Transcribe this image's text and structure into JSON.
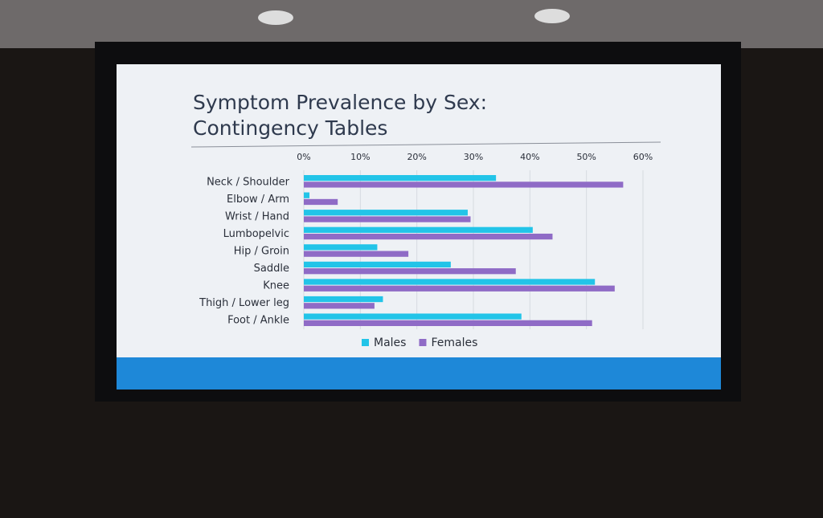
{
  "chart_data": {
    "type": "barh",
    "title": "Symptom Prevalence by Sex: Contingency Tables",
    "categories": [
      "Neck / Shoulder",
      "Elbow / Arm",
      "Wrist / Hand",
      "Lumbopelvic",
      "Hip / Groin",
      "Saddle",
      "Knee",
      "Thigh / Lower leg",
      "Foot / Ankle"
    ],
    "series": [
      {
        "name": "Males",
        "color": "#22c4e8",
        "values": [
          34,
          1,
          29,
          40.5,
          13,
          26,
          51.5,
          14,
          38.5
        ]
      },
      {
        "name": "Females",
        "color": "#8f6bc6",
        "values": [
          56.5,
          6,
          29.5,
          44,
          18.5,
          37.5,
          55,
          12.5,
          51
        ]
      }
    ],
    "xlim": [
      0,
      60
    ],
    "xticks": [
      {
        "value": 0,
        "label": "0%"
      },
      {
        "value": 10,
        "label": "10%"
      },
      {
        "value": 20,
        "label": "20%"
      },
      {
        "value": 30,
        "label": "30%"
      },
      {
        "value": 40,
        "label": "40%"
      },
      {
        "value": 50,
        "label": "50%"
      },
      {
        "value": 60,
        "label": "60%"
      }
    ],
    "grid": true,
    "legend": "bottom"
  }
}
